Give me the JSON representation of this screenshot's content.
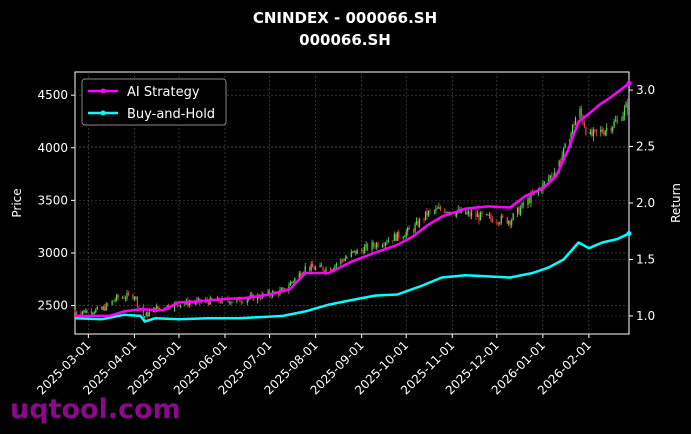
{
  "chart_data": {
    "type": "line",
    "title": "CNINDEX - 000066.SH",
    "subtitle": "000066.SH",
    "ylabel_left": "Price",
    "ylabel_right": "Return",
    "x_ticks": [
      "2025-03-01",
      "2025-04-01",
      "2025-05-01",
      "2025-06-01",
      "2025-07-01",
      "2025-08-01",
      "2025-09-01",
      "2025-10-01",
      "2025-11-01",
      "2025-12-01",
      "2026-01-01",
      "2026-02-01"
    ],
    "y_left_ticks": [
      2500,
      3000,
      3500,
      4000,
      4500
    ],
    "y_right_ticks": [
      "1.0",
      "1.5",
      "2.0",
      "2.5",
      "3.0"
    ],
    "x_range": [
      "2025-02-20",
      "2026-02-28"
    ],
    "ylim_left": [
      2230,
      4720
    ],
    "ylim_right": [
      0.84,
      3.16
    ],
    "grid": true,
    "legend_position": "top-left",
    "colors": {
      "ai_strategy": "#ff00ff",
      "buy_and_hold": "#00ffff",
      "candle_up": "#55dd55",
      "candle_down": "#ee4444"
    },
    "series": [
      {
        "name": "AI Strategy",
        "axis": "right",
        "color": "#ff00ff",
        "points": [
          [
            "2025-02-20",
            1.0
          ],
          [
            "2025-03-15",
            1.0
          ],
          [
            "2025-03-25",
            1.04
          ],
          [
            "2025-04-05",
            1.06
          ],
          [
            "2025-04-20",
            1.05
          ],
          [
            "2025-05-01",
            1.12
          ],
          [
            "2025-05-15",
            1.13
          ],
          [
            "2025-06-01",
            1.15
          ],
          [
            "2025-06-15",
            1.16
          ],
          [
            "2025-07-01",
            1.19
          ],
          [
            "2025-07-15",
            1.24
          ],
          [
            "2025-07-25",
            1.38
          ],
          [
            "2025-08-10",
            1.38
          ],
          [
            "2025-08-25",
            1.48
          ],
          [
            "2025-09-10",
            1.56
          ],
          [
            "2025-09-25",
            1.63
          ],
          [
            "2025-10-05",
            1.7
          ],
          [
            "2025-10-15",
            1.8
          ],
          [
            "2025-10-25",
            1.88
          ],
          [
            "2025-11-10",
            1.95
          ],
          [
            "2025-11-25",
            1.97
          ],
          [
            "2025-12-10",
            1.96
          ],
          [
            "2025-12-20",
            2.06
          ],
          [
            "2026-01-01",
            2.13
          ],
          [
            "2026-01-10",
            2.24
          ],
          [
            "2026-01-18",
            2.47
          ],
          [
            "2026-01-25",
            2.72
          ],
          [
            "2026-02-01",
            2.79
          ],
          [
            "2026-02-08",
            2.87
          ],
          [
            "2026-02-15",
            2.93
          ],
          [
            "2026-02-22",
            3.0
          ],
          [
            "2026-02-28",
            3.06
          ]
        ]
      },
      {
        "name": "Buy-and-Hold",
        "axis": "right",
        "color": "#00ffff",
        "points": [
          [
            "2025-02-20",
            0.98
          ],
          [
            "2025-03-10",
            0.97
          ],
          [
            "2025-03-25",
            1.01
          ],
          [
            "2025-04-05",
            1.0
          ],
          [
            "2025-04-08",
            0.95
          ],
          [
            "2025-04-15",
            0.98
          ],
          [
            "2025-05-01",
            0.97
          ],
          [
            "2025-05-20",
            0.98
          ],
          [
            "2025-06-10",
            0.98
          ],
          [
            "2025-06-25",
            0.99
          ],
          [
            "2025-07-10",
            1.0
          ],
          [
            "2025-07-25",
            1.04
          ],
          [
            "2025-08-10",
            1.1
          ],
          [
            "2025-08-25",
            1.14
          ],
          [
            "2025-09-10",
            1.18
          ],
          [
            "2025-09-25",
            1.19
          ],
          [
            "2025-10-10",
            1.26
          ],
          [
            "2025-10-25",
            1.34
          ],
          [
            "2025-11-10",
            1.36
          ],
          [
            "2025-11-25",
            1.35
          ],
          [
            "2025-12-10",
            1.34
          ],
          [
            "2025-12-25",
            1.38
          ],
          [
            "2026-01-05",
            1.43
          ],
          [
            "2026-01-15",
            1.5
          ],
          [
            "2026-01-25",
            1.65
          ],
          [
            "2026-02-01",
            1.6
          ],
          [
            "2026-02-10",
            1.65
          ],
          [
            "2026-02-20",
            1.68
          ],
          [
            "2026-02-28",
            1.73
          ]
        ]
      }
    ],
    "price_path": [
      [
        "2025-02-20",
        2440
      ],
      [
        "2025-03-10",
        2460
      ],
      [
        "2025-03-20",
        2570
      ],
      [
        "2025-04-01",
        2600
      ],
      [
        "2025-04-07",
        2390
      ],
      [
        "2025-04-15",
        2470
      ],
      [
        "2025-05-01",
        2520
      ],
      [
        "2025-05-20",
        2540
      ],
      [
        "2025-06-10",
        2550
      ],
      [
        "2025-06-25",
        2590
      ],
      [
        "2025-07-10",
        2640
      ],
      [
        "2025-07-25",
        2860
      ],
      [
        "2025-08-10",
        2850
      ],
      [
        "2025-08-25",
        2990
      ],
      [
        "2025-09-10",
        3080
      ],
      [
        "2025-09-25",
        3160
      ],
      [
        "2025-10-05",
        3220
      ],
      [
        "2025-10-15",
        3370
      ],
      [
        "2025-10-25",
        3420
      ],
      [
        "2025-11-10",
        3370
      ],
      [
        "2025-11-25",
        3330
      ],
      [
        "2025-12-10",
        3310
      ],
      [
        "2025-12-20",
        3470
      ],
      [
        "2026-01-01",
        3640
      ],
      [
        "2026-01-10",
        3800
      ],
      [
        "2026-01-18",
        4050
      ],
      [
        "2026-01-25",
        4380
      ],
      [
        "2026-02-01",
        4100
      ],
      [
        "2026-02-10",
        4160
      ],
      [
        "2026-02-20",
        4250
      ],
      [
        "2026-02-28",
        4420
      ]
    ]
  },
  "watermark": "uqtool.com"
}
